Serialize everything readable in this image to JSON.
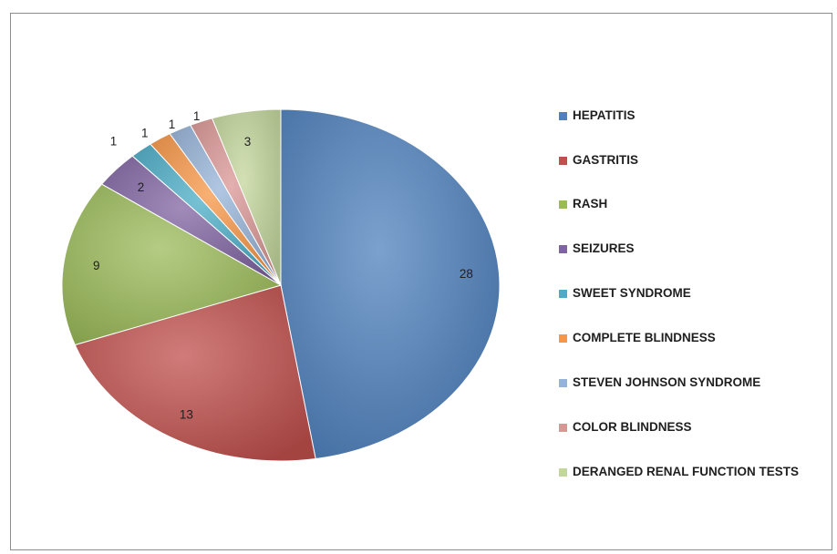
{
  "chart_data": {
    "type": "pie",
    "categories": [
      "HEPATITIS",
      "GASTRITIS",
      "RASH",
      "SEIZURES",
      "SWEET SYNDROME",
      "COMPLETE BLINDNESS",
      "STEVEN JOHNSON SYNDROME",
      "COLOR BLINDNESS",
      "DERANGED RENAL FUNCTION TESTS"
    ],
    "values": [
      28,
      13,
      9,
      2,
      1,
      1,
      1,
      1,
      3
    ],
    "colors": [
      "#4f81bd",
      "#c0504d",
      "#9bbb59",
      "#8064a2",
      "#4bacc6",
      "#f79646",
      "#95b3d7",
      "#d99694",
      "#c3d69b"
    ],
    "legend_position": "right",
    "style": "3d-shaded"
  }
}
